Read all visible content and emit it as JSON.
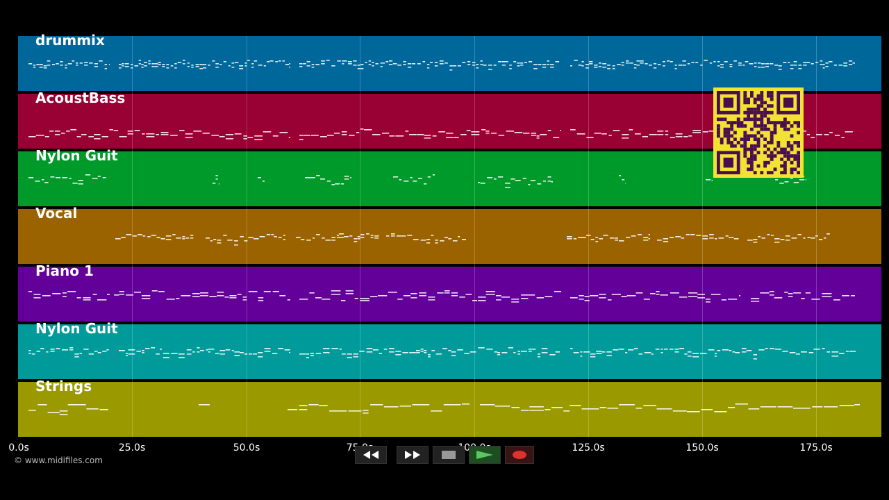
{
  "tracks": [
    {
      "name": "drummix",
      "color": "#00679a"
    },
    {
      "name": "AcoustBass",
      "color": "#990033"
    },
    {
      "name": "Nylon Guit",
      "color": "#009a2a"
    },
    {
      "name": "Vocal",
      "color": "#9a6300"
    },
    {
      "name": "Piano 1",
      "color": "#630099"
    },
    {
      "name": "Nylon Guit",
      "color": "#009a9a"
    },
    {
      "name": "Strings",
      "color": "#9a9a00"
    }
  ],
  "timeline": {
    "ticks": [
      "0.0s",
      "25.0s",
      "50.0s",
      "75.0s",
      "100.0s",
      "125.0s",
      "150.0s",
      "175.0s"
    ]
  },
  "copyright": "© www.midifiles.com",
  "transport": {
    "buttons": [
      {
        "icon": "rewind-icon"
      },
      {
        "icon": "fast-forward-icon"
      },
      {
        "icon": "stop-icon"
      },
      {
        "icon": "play-icon"
      },
      {
        "icon": "record-icon"
      }
    ]
  },
  "qr_color": "#f2e233"
}
